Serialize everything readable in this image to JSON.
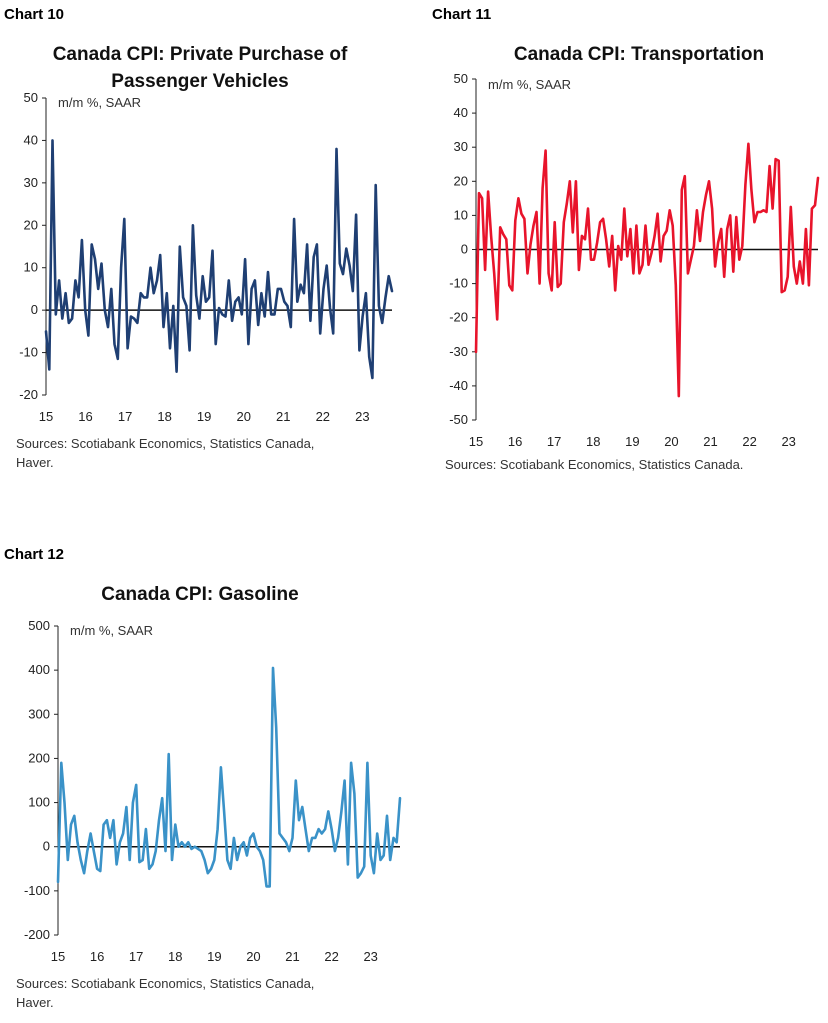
{
  "chart_data": [
    {
      "id": "chart10",
      "label": "Chart 10",
      "type": "line",
      "title": "Canada CPI: Private Purchase of Passenger Vehicles",
      "title_lines": [
        "Canada CPI: Private Purchase of",
        "Passenger Vehicles"
      ],
      "ylabel": "m/m %, SAAR",
      "ylim": [
        -20,
        50
      ],
      "yticks": [
        50,
        40,
        30,
        20,
        10,
        0,
        -10,
        -20
      ],
      "xlim": [
        2015.0,
        2023.75
      ],
      "xticks": [
        "15",
        "16",
        "17",
        "18",
        "19",
        "20",
        "21",
        "22",
        "23"
      ],
      "color": "#1f3f73",
      "source": [
        "Sources: Scotiabank Economics, Statistics Canada,",
        "Haver."
      ],
      "series": [
        {
          "name": "m/m %, SAAR",
          "values": [
            -5,
            -14,
            40,
            -1,
            7,
            -2,
            4,
            -3,
            -2,
            7,
            3,
            16.5,
            0,
            -6,
            15.5,
            12,
            5,
            11,
            0,
            -4,
            5,
            -8,
            -11.5,
            10,
            21.5,
            -9,
            -1.5,
            -2,
            -3,
            4,
            3,
            3,
            10,
            4,
            7,
            13,
            -4,
            4,
            -9,
            1,
            -14.5,
            15,
            3,
            1,
            -9.5,
            20,
            3.5,
            -2,
            8,
            2,
            3,
            14,
            -8,
            0.5,
            -1,
            -1.5,
            7,
            -2.5,
            2,
            3,
            -1,
            12,
            -8,
            5,
            7,
            -3.5,
            4,
            -1.5,
            9,
            -1,
            -1,
            5,
            5,
            2,
            1,
            -4,
            21.5,
            2,
            6,
            4,
            15.5,
            -2.5,
            12.5,
            15.5,
            -5.5,
            5,
            10.5,
            0.5,
            -5.5,
            38,
            11,
            8.5,
            14.5,
            10.5,
            4.5,
            22.5,
            -9.5,
            -1.5,
            4,
            -11,
            -16,
            29.5,
            1,
            -3,
            3,
            8,
            4.5
          ]
        }
      ]
    },
    {
      "id": "chart11",
      "label": "Chart 11",
      "type": "line",
      "title": "Canada CPI: Transportation",
      "title_lines": [
        "Canada CPI: Transportation"
      ],
      "ylabel": "m/m %, SAAR",
      "ylim": [
        -50,
        50
      ],
      "yticks": [
        50,
        40,
        30,
        20,
        10,
        0,
        -10,
        -20,
        -30,
        -40,
        -50
      ],
      "xlim": [
        2015.0,
        2023.75
      ],
      "xticks": [
        "15",
        "16",
        "17",
        "18",
        "19",
        "20",
        "21",
        "22",
        "23"
      ],
      "color": "#e8142b",
      "source": [
        "Sources: Scotiabank Economics, Statistics Canada."
      ],
      "series": [
        {
          "name": "m/m %, SAAR",
          "values": [
            -30,
            16.5,
            15,
            -6,
            17,
            4,
            -7,
            -20.5,
            6.5,
            4.5,
            3,
            -10.5,
            -12,
            8.5,
            15,
            10.5,
            9,
            -7,
            1.5,
            7,
            11,
            -10,
            18,
            29,
            -7,
            -12,
            8,
            -11,
            -10,
            8,
            13.5,
            20,
            5,
            20,
            -6,
            4,
            3,
            12,
            -3,
            -3,
            2,
            8,
            9,
            3,
            -5,
            4,
            -12,
            1,
            -3,
            12,
            -2,
            6,
            -7,
            7,
            -7,
            -4.5,
            7,
            -4.5,
            -1,
            4,
            10.5,
            -3.5,
            4,
            5.5,
            11.5,
            7,
            -10.5,
            -43,
            17.5,
            21.5,
            -7,
            -3,
            1,
            11.5,
            2.5,
            11,
            16,
            20,
            12,
            -5,
            2,
            6,
            -8,
            6,
            10,
            -6.5,
            9.5,
            -3,
            1,
            19,
            31,
            17.5,
            8,
            11,
            11,
            11.5,
            11,
            24.5,
            12,
            26.5,
            26,
            -12.5,
            -12,
            -8,
            12.5,
            -5,
            -10,
            -3.5,
            -10,
            6,
            -10.5,
            12,
            13,
            21
          ]
        }
      ]
    },
    {
      "id": "chart12",
      "label": "Chart 12",
      "type": "line",
      "title": "Canada CPI: Gasoline",
      "title_lines": [
        "Canada CPI: Gasoline"
      ],
      "ylabel": "m/m %, SAAR",
      "ylim": [
        -200,
        500
      ],
      "yticks": [
        500,
        400,
        300,
        200,
        100,
        0,
        -100,
        -200
      ],
      "xlim": [
        2015.0,
        2023.75
      ],
      "xticks": [
        "15",
        "16",
        "17",
        "18",
        "19",
        "20",
        "21",
        "22",
        "23"
      ],
      "color": "#3a92c8",
      "source": [
        "Sources: Scotiabank Economics, Statistics Canada,",
        "Haver."
      ],
      "series": [
        {
          "name": "m/m %, SAAR",
          "values": [
            -80,
            190,
            100,
            -30,
            50,
            70,
            10,
            -30,
            -60,
            -10,
            30,
            -10,
            -50,
            -55,
            50,
            60,
            20,
            60,
            -40,
            10,
            30,
            90,
            -30,
            100,
            140,
            -35,
            -30,
            40,
            -50,
            -40,
            -10,
            60,
            110,
            -10,
            210,
            -30,
            50,
            0,
            10,
            0,
            10,
            -5,
            0,
            -5,
            -10,
            -30,
            -60,
            -50,
            -30,
            40,
            180,
            80,
            -30,
            -50,
            20,
            -30,
            0,
            10,
            -20,
            20,
            30,
            0,
            -10,
            -30,
            -90,
            -90,
            405,
            270,
            30,
            20,
            10,
            -10,
            20,
            150,
            60,
            90,
            40,
            -10,
            20,
            20,
            40,
            30,
            40,
            80,
            40,
            -10,
            20,
            80,
            150,
            -40,
            190,
            120,
            -70,
            -60,
            -45,
            190,
            -20,
            -60,
            30,
            -30,
            -20,
            70,
            -30,
            20,
            10,
            110
          ]
        }
      ]
    }
  ]
}
